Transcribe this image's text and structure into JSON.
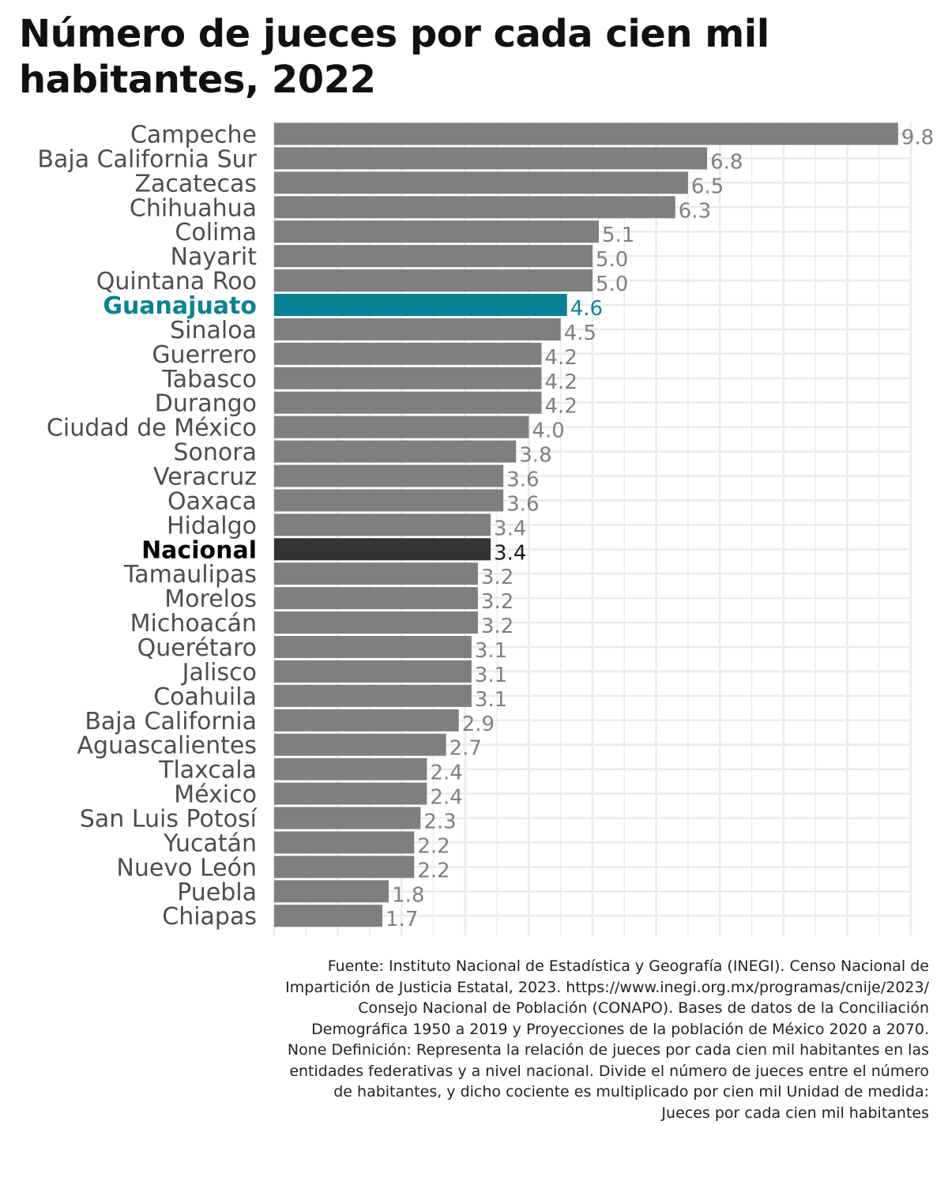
{
  "chart_data": {
    "type": "bar",
    "orientation": "horizontal",
    "title": "Número de jueces por cada cien mil habitantes, 2022",
    "categories": [
      "Campeche",
      "Baja California Sur",
      "Zacatecas",
      "Chihuahua",
      "Colima",
      "Nayarit",
      "Quintana Roo",
      "Guanajuato",
      "Sinaloa",
      "Guerrero",
      "Tabasco",
      "Durango",
      "Ciudad de México",
      "Sonora",
      "Veracruz",
      "Oaxaca",
      "Hidalgo",
      "Nacional",
      "Tamaulipas",
      "Morelos",
      "Michoacán",
      "Querétaro",
      "Jalisco",
      "Coahuila",
      "Baja California",
      "Aguascalientes",
      "Tlaxcala",
      "México",
      "San Luis Potosí",
      "Yucatán",
      "Nuevo León",
      "Puebla",
      "Chiapas"
    ],
    "values": [
      9.8,
      6.8,
      6.5,
      6.3,
      5.1,
      5.0,
      5.0,
      4.6,
      4.5,
      4.2,
      4.2,
      4.2,
      4.0,
      3.8,
      3.6,
      3.6,
      3.4,
      3.4,
      3.2,
      3.2,
      3.2,
      3.1,
      3.1,
      3.1,
      2.9,
      2.7,
      2.4,
      2.4,
      2.3,
      2.2,
      2.2,
      1.8,
      1.7
    ],
    "value_labels": [
      "9.8",
      "6.8",
      "6.5",
      "6.3",
      "5.1",
      "5.0",
      "5.0",
      "4.6",
      "4.5",
      "4.2",
      "4.2",
      "4.2",
      "4.0",
      "3.8",
      "3.6",
      "3.6",
      "3.4",
      "3.4",
      "3.2",
      "3.2",
      "3.2",
      "3.1",
      "3.1",
      "3.1",
      "2.9",
      "2.7",
      "2.4",
      "2.4",
      "2.3",
      "2.2",
      "2.2",
      "1.8",
      "1.7"
    ],
    "highlight": "Guanajuato",
    "national": "Nacional",
    "xlim": [
      0,
      10
    ],
    "grid": true,
    "legend": "none",
    "colors": {
      "default": "#7f7f7f",
      "highlight": "#0a8296",
      "national": "#333333",
      "grid": "#ebebeb"
    }
  },
  "source": "Fuente: Instituto Nacional de Estadística y Geografía (INEGI). Censo Nacional de Impartición de Justicia Estatal, 2023. https://www.inegi.org.mx/programas/cnije/2023/ Consejo Nacional de Población (CONAPO). Bases de datos de la Conciliación Demográfica 1950 a 2019 y Proyecciones de la población de México 2020 a 2070. None Definición: Representa la relación de jueces por cada cien mil habitantes en las entidades federativas y a nivel nacional. Divide el número de jueces entre el número de habitantes, y dicho cociente es multiplicado por cien mil Unidad de medida: Jueces por cada cien mil habitantes"
}
